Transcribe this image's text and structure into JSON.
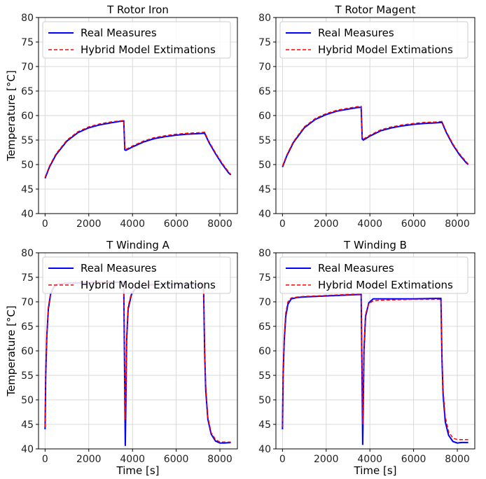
{
  "chart_data": [
    {
      "type": "line",
      "title": "T Rotor Iron",
      "xlabel": "",
      "ylabel": "Temperature [°C]",
      "xlim": [
        -300,
        8800
      ],
      "ylim": [
        40,
        80
      ],
      "xticks": [
        0,
        2000,
        4000,
        6000,
        8000
      ],
      "yticks": [
        40,
        45,
        50,
        55,
        60,
        65,
        70,
        75,
        80
      ],
      "legend": "upper-left",
      "grid": true,
      "series": [
        {
          "name": "Real Measures",
          "color": "#0000ff",
          "style": "solid",
          "x": [
            0,
            200,
            500,
            1000,
            1500,
            2000,
            2500,
            3000,
            3400,
            3600,
            3650,
            3700,
            4000,
            4500,
            5000,
            5500,
            6000,
            6500,
            7000,
            7300,
            7500,
            7800,
            8100,
            8400,
            8500
          ],
          "y": [
            47.2,
            49.5,
            52.0,
            54.8,
            56.5,
            57.5,
            58.1,
            58.5,
            58.8,
            58.9,
            53.0,
            52.9,
            53.6,
            54.6,
            55.3,
            55.7,
            56.0,
            56.2,
            56.3,
            56.4,
            54.5,
            52.2,
            50.1,
            48.3,
            47.9
          ]
        },
        {
          "name": "Hybrid Model Extimations",
          "color": "#ff0000",
          "style": "dashed",
          "x": [
            0,
            200,
            500,
            1000,
            1500,
            2000,
            2500,
            3000,
            3400,
            3600,
            3650,
            3700,
            4000,
            4500,
            5000,
            5500,
            6000,
            6500,
            7000,
            7300,
            7500,
            7800,
            8100,
            8400,
            8500
          ],
          "y": [
            47.4,
            49.7,
            52.2,
            55.0,
            56.7,
            57.7,
            58.3,
            58.7,
            58.9,
            59.0,
            53.3,
            53.1,
            53.8,
            54.8,
            55.5,
            55.9,
            56.2,
            56.4,
            56.5,
            56.6,
            54.7,
            52.4,
            50.3,
            48.5,
            48.0
          ]
        }
      ]
    },
    {
      "type": "line",
      "title": "T Rotor Magent",
      "xlabel": "",
      "ylabel": "",
      "xlim": [
        -300,
        8800
      ],
      "ylim": [
        40,
        80
      ],
      "xticks": [
        0,
        2000,
        4000,
        6000,
        8000
      ],
      "yticks": [
        40,
        45,
        50,
        55,
        60,
        65,
        70,
        75,
        80
      ],
      "legend": "upper-left",
      "grid": true,
      "series": [
        {
          "name": "Real Measures",
          "color": "#0000ff",
          "style": "solid",
          "x": [
            0,
            200,
            500,
            1000,
            1500,
            2000,
            2500,
            3000,
            3400,
            3600,
            3650,
            3700,
            4000,
            4500,
            5000,
            5500,
            6000,
            6500,
            7000,
            7300,
            7500,
            7800,
            8100,
            8400,
            8500
          ],
          "y": [
            49.5,
            51.8,
            54.5,
            57.5,
            59.2,
            60.2,
            60.9,
            61.3,
            61.6,
            61.7,
            55.2,
            55.0,
            55.8,
            56.9,
            57.5,
            57.9,
            58.2,
            58.4,
            58.5,
            58.6,
            56.5,
            54.0,
            52.0,
            50.4,
            50.0
          ]
        },
        {
          "name": "Hybrid Model Extimations",
          "color": "#ff0000",
          "style": "dashed",
          "x": [
            0,
            200,
            500,
            1000,
            1500,
            2000,
            2500,
            3000,
            3400,
            3600,
            3650,
            3700,
            4000,
            4500,
            5000,
            5500,
            6000,
            6500,
            7000,
            7300,
            7500,
            7800,
            8100,
            8400,
            8500
          ],
          "y": [
            49.7,
            52.0,
            54.7,
            57.7,
            59.4,
            60.4,
            61.1,
            61.5,
            61.8,
            61.9,
            55.4,
            55.2,
            56.0,
            57.1,
            57.7,
            58.1,
            58.4,
            58.6,
            58.7,
            58.8,
            56.7,
            54.2,
            52.2,
            50.6,
            50.1
          ]
        }
      ]
    },
    {
      "type": "line",
      "title": "T Winding A",
      "xlabel": "Time [s]",
      "ylabel": "Temperature [°C]",
      "xlim": [
        -300,
        8800
      ],
      "ylim": [
        40,
        80
      ],
      "xticks": [
        0,
        2000,
        4000,
        6000,
        8000
      ],
      "yticks": [
        40,
        45,
        50,
        55,
        60,
        65,
        70,
        75,
        80
      ],
      "legend": "upper-left",
      "grid": true,
      "series": [
        {
          "name": "Real Measures",
          "color": "#0000ff",
          "style": "solid",
          "x": [
            0,
            30,
            80,
            150,
            250,
            400,
            600,
            1000,
            2000,
            3000,
            3600,
            3640,
            3670,
            3700,
            3730,
            3800,
            3950,
            4150,
            4400,
            5000,
            6000,
            7000,
            7250,
            7300,
            7350,
            7450,
            7600,
            7800,
            8000,
            8200,
            8500
          ],
          "y": [
            44.0,
            55.0,
            63.0,
            68.5,
            71.5,
            73.0,
            73.6,
            73.8,
            73.9,
            74.0,
            74.0,
            55.0,
            40.6,
            50.0,
            62.0,
            68.5,
            71.5,
            72.8,
            73.3,
            73.5,
            73.6,
            73.6,
            73.6,
            60.0,
            52.0,
            46.0,
            43.0,
            41.6,
            41.2,
            41.2,
            41.3
          ]
        },
        {
          "name": "Hybrid Model Extimations",
          "color": "#ff0000",
          "style": "dashed",
          "x": [
            0,
            30,
            80,
            150,
            250,
            400,
            600,
            1000,
            2000,
            3000,
            3600,
            3640,
            3670,
            3700,
            3730,
            3800,
            3950,
            4150,
            4400,
            5000,
            6000,
            7000,
            7250,
            7300,
            7350,
            7450,
            7600,
            7800,
            8000,
            8200,
            8500
          ],
          "y": [
            44.5,
            55.5,
            63.5,
            69.0,
            71.8,
            73.2,
            73.7,
            73.9,
            74.0,
            74.1,
            74.1,
            58.0,
            46.0,
            52.0,
            63.0,
            69.0,
            71.8,
            73.0,
            73.4,
            73.6,
            73.7,
            73.7,
            73.7,
            61.0,
            53.0,
            46.5,
            43.3,
            41.9,
            41.4,
            41.4,
            41.4
          ]
        }
      ]
    },
    {
      "type": "line",
      "title": "T Winding B",
      "xlabel": "Time [s]",
      "ylabel": "",
      "xlim": [
        -300,
        8800
      ],
      "ylim": [
        40,
        80
      ],
      "xticks": [
        0,
        2000,
        4000,
        6000,
        8000
      ],
      "yticks": [
        40,
        45,
        50,
        55,
        60,
        65,
        70,
        75,
        80
      ],
      "legend": "upper-left",
      "grid": true,
      "series": [
        {
          "name": "Real Measures",
          "color": "#0000ff",
          "style": "solid",
          "x": [
            0,
            30,
            80,
            150,
            250,
            400,
            700,
            1000,
            2000,
            3000,
            3600,
            3640,
            3670,
            3700,
            3730,
            3800,
            3950,
            4150,
            4400,
            5000,
            6000,
            7000,
            7250,
            7300,
            7350,
            7450,
            7600,
            7800,
            8000,
            8200,
            8500
          ],
          "y": [
            44.0,
            55.0,
            62.0,
            67.0,
            69.5,
            70.6,
            70.9,
            71.0,
            71.2,
            71.4,
            71.5,
            55.0,
            40.8,
            50.0,
            60.0,
            67.0,
            69.8,
            70.6,
            70.6,
            70.6,
            70.6,
            70.7,
            70.7,
            58.0,
            51.0,
            45.5,
            42.8,
            41.5,
            41.2,
            41.3,
            41.3
          ]
        },
        {
          "name": "Hybrid Model Extimations",
          "color": "#ff0000",
          "style": "dashed",
          "x": [
            0,
            30,
            80,
            150,
            250,
            400,
            700,
            1000,
            2000,
            3000,
            3600,
            3640,
            3670,
            3700,
            3730,
            3800,
            3950,
            4150,
            4400,
            5000,
            6000,
            7000,
            7250,
            7300,
            7350,
            7450,
            7600,
            7800,
            8000,
            8200,
            8500
          ],
          "y": [
            44.5,
            56.0,
            63.0,
            67.8,
            70.0,
            70.8,
            71.0,
            71.1,
            71.3,
            71.5,
            71.6,
            58.0,
            45.0,
            52.0,
            61.0,
            67.5,
            69.6,
            70.2,
            70.3,
            70.4,
            70.5,
            70.5,
            70.5,
            59.0,
            52.0,
            46.5,
            43.5,
            42.2,
            41.9,
            41.9,
            41.9
          ]
        }
      ]
    }
  ]
}
